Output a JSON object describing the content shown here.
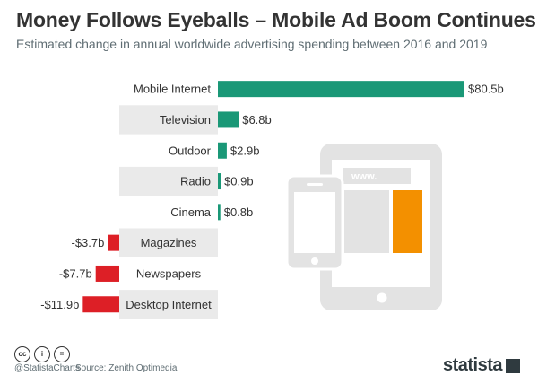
{
  "header": {
    "title": "Money Follows Eyeballs – Mobile Ad Boom Continues",
    "subtitle": "Estimated change in annual worldwide advertising spending between 2016 and 2019"
  },
  "footer": {
    "handle": "@StatistaCharts",
    "source": "Source: Zenith Optimedia",
    "brand": "statista",
    "cc_icons": [
      "cc",
      "i",
      "="
    ]
  },
  "colors": {
    "positive": "#1a9877",
    "negative": "#dd1f26",
    "label_band": "#eaeaea",
    "device_gray": "#e3e3e3",
    "device_accent": "#f39000"
  },
  "illustration": {
    "browser_text": "www."
  },
  "chart_data": {
    "type": "bar",
    "orientation": "horizontal",
    "title": "Money Follows Eyeballs – Mobile Ad Boom Continues",
    "subtitle": "Estimated change in annual worldwide advertising spending between 2016 and 2019",
    "categories": [
      "Mobile Internet",
      "Television",
      "Outdoor",
      "Radio",
      "Cinema",
      "Magazines",
      "Newspapers",
      "Desktop Internet"
    ],
    "values": [
      80.5,
      6.8,
      2.9,
      0.9,
      0.8,
      -3.7,
      -7.7,
      -11.9
    ],
    "value_labels": [
      "$80.5b",
      "$6.8b",
      "$2.9b",
      "$0.9b",
      "$0.8b",
      "-$3.7b",
      "-$7.7b",
      "-$11.9b"
    ],
    "unit": "billion U.S. dollars",
    "grid": false,
    "legend": false
  }
}
